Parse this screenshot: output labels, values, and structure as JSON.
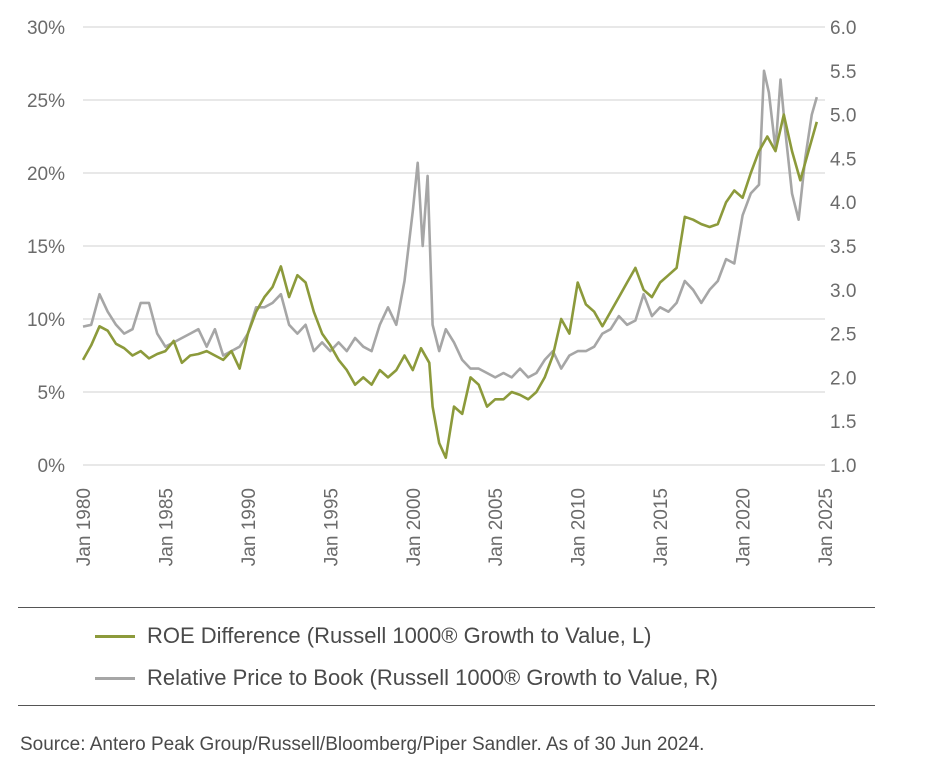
{
  "chart_data": {
    "type": "line",
    "title": "",
    "xlabel": "",
    "ylabel_left": "",
    "ylabel_right": "",
    "x_ticks": [
      "Jan 1980",
      "Jan 1985",
      "Jan 1990",
      "Jan 1995",
      "Jan 2000",
      "Jan 2005",
      "Jan 2010",
      "Jan 2015",
      "Jan 2020",
      "Jan 2025"
    ],
    "x_range": [
      1980,
      2025
    ],
    "y_left_ticks": [
      "0%",
      "5%",
      "10%",
      "15%",
      "20%",
      "25%",
      "30%"
    ],
    "y_left_range": [
      0,
      30
    ],
    "y_right_ticks": [
      "1.0",
      "1.5",
      "2.0",
      "2.5",
      "3.0",
      "3.5",
      "4.0",
      "4.5",
      "5.0",
      "5.5",
      "6.0"
    ],
    "y_right_range": [
      1.0,
      6.0
    ],
    "grid": "horizontal",
    "legend_position": "bottom",
    "series": [
      {
        "name": "ROE Difference (Russell 1000® Growth to Value, L)",
        "axis": "left",
        "color": "#8c9a3b",
        "x": [
          1980,
          1980.5,
          1981,
          1981.5,
          1982,
          1982.5,
          1983,
          1983.5,
          1984,
          1984.5,
          1985,
          1985.5,
          1986,
          1986.5,
          1987,
          1987.5,
          1988,
          1988.5,
          1989,
          1989.5,
          1990,
          1990.5,
          1991,
          1991.5,
          1992,
          1992.5,
          1993,
          1993.5,
          1994,
          1994.5,
          1995,
          1995.5,
          1996,
          1996.5,
          1997,
          1997.5,
          1998,
          1998.5,
          1999,
          1999.5,
          2000,
          2000.5,
          2001,
          2001.2,
          2001.6,
          2002,
          2002.5,
          2003,
          2003.5,
          2004,
          2004.5,
          2005,
          2005.5,
          2006,
          2006.5,
          2007,
          2007.5,
          2008,
          2008.5,
          2009,
          2009.5,
          2010,
          2010.5,
          2011,
          2011.5,
          2012,
          2012.5,
          2013,
          2013.5,
          2014,
          2014.5,
          2015,
          2015.5,
          2016,
          2016.5,
          2017,
          2017.5,
          2018,
          2018.5,
          2019,
          2019.5,
          2020,
          2020.5,
          2021,
          2021.5,
          2022,
          2022.5,
          2023,
          2023.5,
          2024,
          2024.5
        ],
        "values": [
          7.2,
          8.2,
          9.5,
          9.2,
          8.3,
          8.0,
          7.5,
          7.8,
          7.3,
          7.6,
          7.8,
          8.5,
          7.0,
          7.5,
          7.6,
          7.8,
          7.5,
          7.2,
          7.8,
          6.6,
          9.0,
          10.5,
          11.5,
          12.2,
          13.6,
          11.5,
          13.0,
          12.5,
          10.5,
          9.0,
          8.2,
          7.2,
          6.5,
          5.5,
          6.0,
          5.5,
          6.5,
          6.0,
          6.5,
          7.5,
          6.5,
          8.0,
          7.0,
          4.0,
          1.5,
          0.5,
          4.0,
          3.5,
          6.0,
          5.5,
          4.0,
          4.5,
          4.5,
          5.0,
          4.8,
          4.5,
          5.0,
          6.0,
          7.5,
          10.0,
          9.0,
          12.5,
          11.0,
          10.5,
          9.5,
          10.5,
          11.5,
          12.5,
          13.5,
          12.0,
          11.5,
          12.5,
          13.0,
          13.5,
          17.0,
          16.8,
          16.5,
          16.3,
          16.5,
          18.0,
          18.8,
          18.3,
          20.0,
          21.5,
          22.5,
          21.5,
          24.0,
          21.5,
          19.5,
          21.5,
          23.5
        ]
      },
      {
        "name": "Relative Price to Book (Russell 1000® Growth to Value, R)",
        "axis": "right",
        "color": "#a6a6a6",
        "x": [
          1980,
          1980.5,
          1981,
          1981.5,
          1982,
          1982.5,
          1983,
          1983.5,
          1984,
          1984.5,
          1985,
          1985.5,
          1986,
          1986.5,
          1987,
          1987.5,
          1988,
          1988.5,
          1989,
          1989.5,
          1990,
          1990.5,
          1991,
          1991.5,
          1992,
          1992.5,
          1993,
          1993.5,
          1994,
          1994.5,
          1995,
          1995.5,
          1996,
          1996.5,
          1997,
          1997.5,
          1998,
          1998.5,
          1999,
          1999.5,
          2000,
          2000.3,
          2000.6,
          2000.9,
          2001.2,
          2001.6,
          2002,
          2002.5,
          2003,
          2003.5,
          2004,
          2004.5,
          2005,
          2005.5,
          2006,
          2006.5,
          2007,
          2007.5,
          2008,
          2008.5,
          2009,
          2009.5,
          2010,
          2010.5,
          2011,
          2011.5,
          2012,
          2012.5,
          2013,
          2013.5,
          2014,
          2014.5,
          2015,
          2015.5,
          2016,
          2016.5,
          2017,
          2017.5,
          2018,
          2018.5,
          2019,
          2019.5,
          2020,
          2020.5,
          2021,
          2021.3,
          2021.6,
          2022,
          2022.3,
          2022.6,
          2023,
          2023.4,
          2023.8,
          2024.2,
          2024.5
        ],
        "values": [
          2.58,
          2.6,
          2.95,
          2.75,
          2.6,
          2.5,
          2.55,
          2.85,
          2.85,
          2.5,
          2.35,
          2.4,
          2.45,
          2.5,
          2.55,
          2.35,
          2.55,
          2.25,
          2.3,
          2.35,
          2.5,
          2.8,
          2.8,
          2.85,
          2.95,
          2.6,
          2.5,
          2.6,
          2.3,
          2.4,
          2.3,
          2.4,
          2.3,
          2.45,
          2.35,
          2.3,
          2.6,
          2.8,
          2.6,
          3.1,
          3.9,
          4.45,
          3.5,
          4.3,
          2.6,
          2.3,
          2.55,
          2.4,
          2.2,
          2.1,
          2.1,
          2.05,
          2.0,
          2.05,
          2.0,
          2.1,
          2.0,
          2.05,
          2.2,
          2.3,
          2.1,
          2.25,
          2.3,
          2.3,
          2.35,
          2.5,
          2.55,
          2.7,
          2.6,
          2.65,
          2.95,
          2.7,
          2.8,
          2.75,
          2.85,
          3.1,
          3.0,
          2.85,
          3.0,
          3.1,
          3.35,
          3.3,
          3.85,
          4.1,
          4.2,
          5.5,
          5.25,
          4.6,
          5.4,
          4.8,
          4.1,
          3.8,
          4.5,
          5.0,
          5.2
        ]
      }
    ],
    "source": "Source: Antero Peak Group/Russell/Bloomberg/Piper Sandler. As of 30 Jun 2024."
  }
}
